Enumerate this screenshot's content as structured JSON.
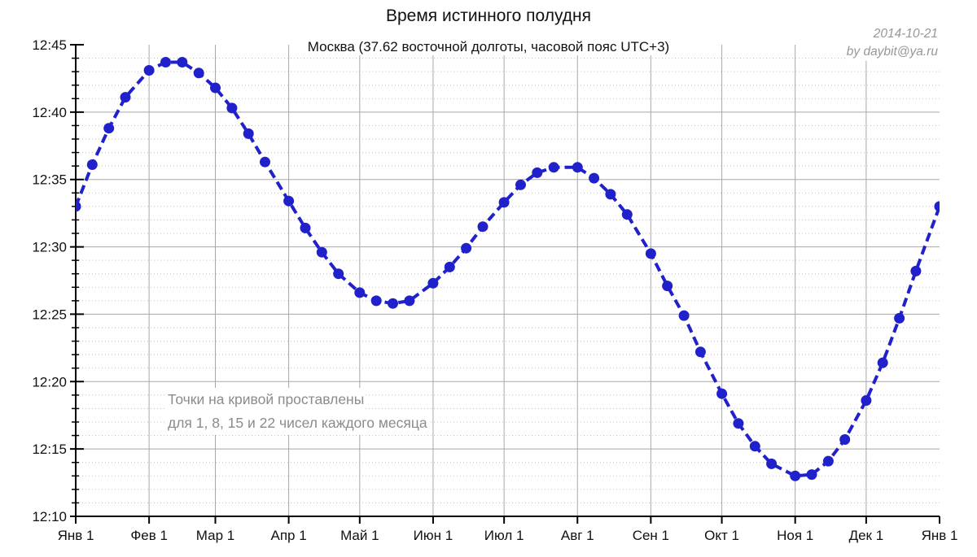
{
  "page": {
    "title": "Время истинного полудня",
    "subtitle": "Москва (37.62 восточной долготы, часовой пояс UTC+3)",
    "credit_date": "2014-10-21",
    "credit_author": "by daybit@ya.ru"
  },
  "annotation": {
    "line1": "Точки на кривой проставлены",
    "line2": "для 1, 8, 15 и 22 чисел каждого месяца"
  },
  "colors": {
    "series": "#2121cc",
    "grid_major": "#a8a8a8",
    "grid_minor": "#bdbdbd",
    "axis": "#000000",
    "text": "#111111",
    "muted_text": "#8b8b8b"
  },
  "chart_data": {
    "type": "line",
    "title": "Время истинного полудня",
    "subtitle": "Москва (37.62 восточной долготы, часовой пояс UTC+3)",
    "legend": "none",
    "grid": "major solid, minor dotted (horizontal every 1 min); vertical solid at month starts",
    "x_axis": {
      "tick_labels": [
        "Янв 1",
        "Фев 1",
        "Мар 1",
        "Апр 1",
        "Май 1",
        "Июн 1",
        "Июл 1",
        "Авг 1",
        "Сен 1",
        "Окт 1",
        "Ноя 1",
        "Дек 1",
        "Янв 1"
      ],
      "tick_days": [
        0,
        31,
        59,
        90,
        120,
        151,
        181,
        212,
        243,
        273,
        304,
        334,
        365
      ],
      "range_days": [
        0,
        365
      ]
    },
    "y_axis": {
      "tick_labels": [
        "12:45",
        "12:40",
        "12:35",
        "12:30",
        "12:25",
        "12:20",
        "12:15",
        "12:10"
      ],
      "unit": "local clock time (12:MM)",
      "min_minutes_after_12": 10,
      "max_minutes_after_12": 45,
      "major_step_minutes": 5,
      "minor_step_minutes": 1
    },
    "series": [
      {
        "name": "Время истинного полудня",
        "marker": "filled-circle",
        "line_style": "dashed",
        "points": [
          {
            "date": "Янв 1",
            "day": 0,
            "minutes_after_12": 33.0
          },
          {
            "date": "Янв 8",
            "day": 7,
            "minutes_after_12": 36.1
          },
          {
            "date": "Янв 15",
            "day": 14,
            "minutes_after_12": 38.8
          },
          {
            "date": "Янв 22",
            "day": 21,
            "minutes_after_12": 41.1
          },
          {
            "date": "Фев 1",
            "day": 31,
            "minutes_after_12": 43.1
          },
          {
            "date": "Фев 8",
            "day": 38,
            "minutes_after_12": 43.7
          },
          {
            "date": "Фев 15",
            "day": 45,
            "minutes_after_12": 43.7
          },
          {
            "date": "Фев 22",
            "day": 52,
            "minutes_after_12": 42.9
          },
          {
            "date": "Мар 1",
            "day": 59,
            "minutes_after_12": 41.8
          },
          {
            "date": "Мар 8",
            "day": 66,
            "minutes_after_12": 40.3
          },
          {
            "date": "Мар 15",
            "day": 73,
            "minutes_after_12": 38.4
          },
          {
            "date": "Мар 22",
            "day": 80,
            "minutes_after_12": 36.3
          },
          {
            "date": "Апр 1",
            "day": 90,
            "minutes_after_12": 33.4
          },
          {
            "date": "Апр 8",
            "day": 97,
            "minutes_after_12": 31.4
          },
          {
            "date": "Апр 15",
            "day": 104,
            "minutes_after_12": 29.6
          },
          {
            "date": "Апр 22",
            "day": 111,
            "minutes_after_12": 28.0
          },
          {
            "date": "Май 1",
            "day": 120,
            "minutes_after_12": 26.6
          },
          {
            "date": "Май 8",
            "day": 127,
            "minutes_after_12": 26.0
          },
          {
            "date": "Май 15",
            "day": 134,
            "minutes_after_12": 25.8
          },
          {
            "date": "Май 22",
            "day": 141,
            "minutes_after_12": 26.0
          },
          {
            "date": "Июн 1",
            "day": 151,
            "minutes_after_12": 27.3
          },
          {
            "date": "Июн 8",
            "day": 158,
            "minutes_after_12": 28.5
          },
          {
            "date": "Июн 15",
            "day": 165,
            "minutes_after_12": 29.9
          },
          {
            "date": "Июн 22",
            "day": 172,
            "minutes_after_12": 31.5
          },
          {
            "date": "Июл 1",
            "day": 181,
            "minutes_after_12": 33.3
          },
          {
            "date": "Июл 8",
            "day": 188,
            "minutes_after_12": 34.6
          },
          {
            "date": "Июл 15",
            "day": 195,
            "minutes_after_12": 35.5
          },
          {
            "date": "Июл 22",
            "day": 202,
            "minutes_after_12": 35.9
          },
          {
            "date": "Авг 1",
            "day": 212,
            "minutes_after_12": 35.9
          },
          {
            "date": "Авг 8",
            "day": 219,
            "minutes_after_12": 35.1
          },
          {
            "date": "Авг 15",
            "day": 226,
            "minutes_after_12": 33.9
          },
          {
            "date": "Авг 22",
            "day": 233,
            "minutes_after_12": 32.4
          },
          {
            "date": "Сен 1",
            "day": 243,
            "minutes_after_12": 29.5
          },
          {
            "date": "Сен 8",
            "day": 250,
            "minutes_after_12": 27.1
          },
          {
            "date": "Сен 15",
            "day": 257,
            "minutes_after_12": 24.9
          },
          {
            "date": "Сен 22",
            "day": 264,
            "minutes_after_12": 22.2
          },
          {
            "date": "Окт 1",
            "day": 273,
            "minutes_after_12": 19.1
          },
          {
            "date": "Окт 8",
            "day": 280,
            "minutes_after_12": 16.9
          },
          {
            "date": "Окт 15",
            "day": 287,
            "minutes_after_12": 15.2
          },
          {
            "date": "Окт 22",
            "day": 294,
            "minutes_after_12": 13.9
          },
          {
            "date": "Ноя 1",
            "day": 304,
            "minutes_after_12": 13.0
          },
          {
            "date": "Ноя 8",
            "day": 311,
            "minutes_after_12": 13.1
          },
          {
            "date": "Ноя 15",
            "day": 318,
            "minutes_after_12": 14.1
          },
          {
            "date": "Ноя 22",
            "day": 325,
            "minutes_after_12": 15.7
          },
          {
            "date": "Дек 1",
            "day": 334,
            "minutes_after_12": 18.6
          },
          {
            "date": "Дек 8",
            "day": 341,
            "minutes_after_12": 21.4
          },
          {
            "date": "Дек 15",
            "day": 348,
            "minutes_after_12": 24.7
          },
          {
            "date": "Дек 22",
            "day": 355,
            "minutes_after_12": 28.2
          },
          {
            "date": "Янв 1",
            "day": 365,
            "minutes_after_12": 33.0
          }
        ]
      }
    ]
  }
}
